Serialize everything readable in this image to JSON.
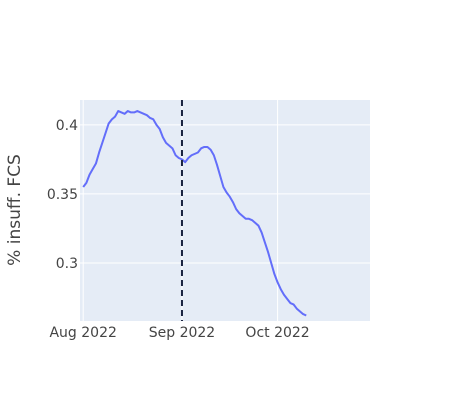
{
  "chart_data": {
    "type": "line",
    "title": "",
    "xlabel": "",
    "ylabel": "% insuff.  FCS",
    "x_range": [
      "2022-07-31",
      "2022-10-30"
    ],
    "ylim": [
      0.258,
      0.418
    ],
    "x_ticks": [
      {
        "value": "2022-08-01",
        "label": "Aug 2022"
      },
      {
        "value": "2022-09-01",
        "label": "Sep 2022"
      },
      {
        "value": "2022-10-01",
        "label": "Oct 2022"
      }
    ],
    "y_ticks": [
      {
        "value": 0.3,
        "label": "0.3"
      },
      {
        "value": 0.35,
        "label": "0.35"
      },
      {
        "value": 0.4,
        "label": "0.4"
      }
    ],
    "grid": true,
    "legend": "none",
    "vline": {
      "x": "2022-09-01",
      "style": "dashed",
      "color": "#1a2340"
    },
    "series": [
      {
        "color": "#636efa",
        "points": [
          [
            "2022-08-01",
            0.355
          ],
          [
            "2022-08-02",
            0.358
          ],
          [
            "2022-08-03",
            0.364
          ],
          [
            "2022-08-04",
            0.368
          ],
          [
            "2022-08-05",
            0.372
          ],
          [
            "2022-08-06",
            0.38
          ],
          [
            "2022-08-07",
            0.387
          ],
          [
            "2022-08-08",
            0.394
          ],
          [
            "2022-08-09",
            0.401
          ],
          [
            "2022-08-10",
            0.404
          ],
          [
            "2022-08-11",
            0.406
          ],
          [
            "2022-08-12",
            0.41
          ],
          [
            "2022-08-13",
            0.409
          ],
          [
            "2022-08-14",
            0.408
          ],
          [
            "2022-08-15",
            0.41
          ],
          [
            "2022-08-16",
            0.409
          ],
          [
            "2022-08-17",
            0.409
          ],
          [
            "2022-08-18",
            0.41
          ],
          [
            "2022-08-19",
            0.409
          ],
          [
            "2022-08-20",
            0.408
          ],
          [
            "2022-08-21",
            0.407
          ],
          [
            "2022-08-22",
            0.405
          ],
          [
            "2022-08-23",
            0.404
          ],
          [
            "2022-08-24",
            0.4
          ],
          [
            "2022-08-25",
            0.397
          ],
          [
            "2022-08-26",
            0.391
          ],
          [
            "2022-08-27",
            0.387
          ],
          [
            "2022-08-28",
            0.385
          ],
          [
            "2022-08-29",
            0.383
          ],
          [
            "2022-08-30",
            0.378
          ],
          [
            "2022-08-31",
            0.376
          ],
          [
            "2022-09-01",
            0.375
          ],
          [
            "2022-09-02",
            0.373
          ],
          [
            "2022-09-03",
            0.376
          ],
          [
            "2022-09-04",
            0.378
          ],
          [
            "2022-09-05",
            0.379
          ],
          [
            "2022-09-06",
            0.38
          ],
          [
            "2022-09-07",
            0.383
          ],
          [
            "2022-09-08",
            0.384
          ],
          [
            "2022-09-09",
            0.384
          ],
          [
            "2022-09-10",
            0.382
          ],
          [
            "2022-09-11",
            0.378
          ],
          [
            "2022-09-12",
            0.371
          ],
          [
            "2022-09-13",
            0.363
          ],
          [
            "2022-09-14",
            0.355
          ],
          [
            "2022-09-15",
            0.351
          ],
          [
            "2022-09-16",
            0.348
          ],
          [
            "2022-09-17",
            0.344
          ],
          [
            "2022-09-18",
            0.339
          ],
          [
            "2022-09-19",
            0.336
          ],
          [
            "2022-09-20",
            0.334
          ],
          [
            "2022-09-21",
            0.332
          ],
          [
            "2022-09-22",
            0.332
          ],
          [
            "2022-09-23",
            0.331
          ],
          [
            "2022-09-24",
            0.329
          ],
          [
            "2022-09-25",
            0.327
          ],
          [
            "2022-09-26",
            0.322
          ],
          [
            "2022-09-27",
            0.315
          ],
          [
            "2022-09-28",
            0.308
          ],
          [
            "2022-09-29",
            0.3
          ],
          [
            "2022-09-30",
            0.292
          ],
          [
            "2022-10-01",
            0.286
          ],
          [
            "2022-10-02",
            0.281
          ],
          [
            "2022-10-03",
            0.277
          ],
          [
            "2022-10-04",
            0.274
          ],
          [
            "2022-10-05",
            0.271
          ],
          [
            "2022-10-06",
            0.27
          ],
          [
            "2022-10-07",
            0.267
          ],
          [
            "2022-10-08",
            0.265
          ],
          [
            "2022-10-09",
            0.263
          ],
          [
            "2022-10-10",
            0.262
          ]
        ]
      }
    ]
  }
}
